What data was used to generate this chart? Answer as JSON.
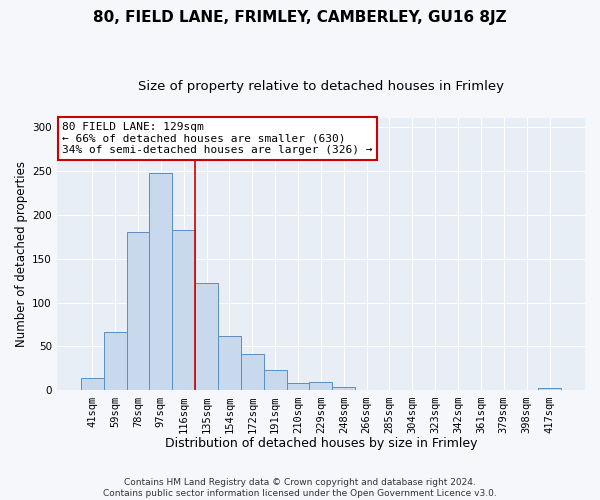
{
  "title1": "80, FIELD LANE, FRIMLEY, CAMBERLEY, GU16 8JZ",
  "title2": "Size of property relative to detached houses in Frimley",
  "xlabel": "Distribution of detached houses by size in Frimley",
  "ylabel": "Number of detached properties",
  "bar_labels": [
    "41sqm",
    "59sqm",
    "78sqm",
    "97sqm",
    "116sqm",
    "135sqm",
    "154sqm",
    "172sqm",
    "191sqm",
    "210sqm",
    "229sqm",
    "248sqm",
    "266sqm",
    "285sqm",
    "304sqm",
    "323sqm",
    "342sqm",
    "361sqm",
    "379sqm",
    "398sqm",
    "417sqm"
  ],
  "bar_values": [
    14,
    67,
    180,
    247,
    182,
    122,
    62,
    41,
    23,
    9,
    10,
    4,
    0,
    0,
    0,
    0,
    0,
    0,
    0,
    0,
    3
  ],
  "bar_color": "#c9d9ed",
  "bar_edge_color": "#5a8fc2",
  "vline_x": 4.5,
  "vline_color": "#cc0000",
  "annotation_line1": "80 FIELD LANE: 129sqm",
  "annotation_line2": "← 66% of detached houses are smaller (630)",
  "annotation_line3": "34% of semi-detached houses are larger (326) →",
  "annotation_box_color": "#ffffff",
  "annotation_box_edge_color": "#cc0000",
  "ylim": [
    0,
    310
  ],
  "yticks": [
    0,
    50,
    100,
    150,
    200,
    250,
    300
  ],
  "plot_bg_color": "#e8eef5",
  "fig_bg_color": "#f5f7fa",
  "footer_line1": "Contains HM Land Registry data © Crown copyright and database right 2024.",
  "footer_line2": "Contains public sector information licensed under the Open Government Licence v3.0.",
  "title1_fontsize": 11,
  "title2_fontsize": 9.5,
  "xlabel_fontsize": 9,
  "ylabel_fontsize": 8.5,
  "tick_fontsize": 7.5,
  "annotation_fontsize": 8,
  "footer_fontsize": 6.5
}
